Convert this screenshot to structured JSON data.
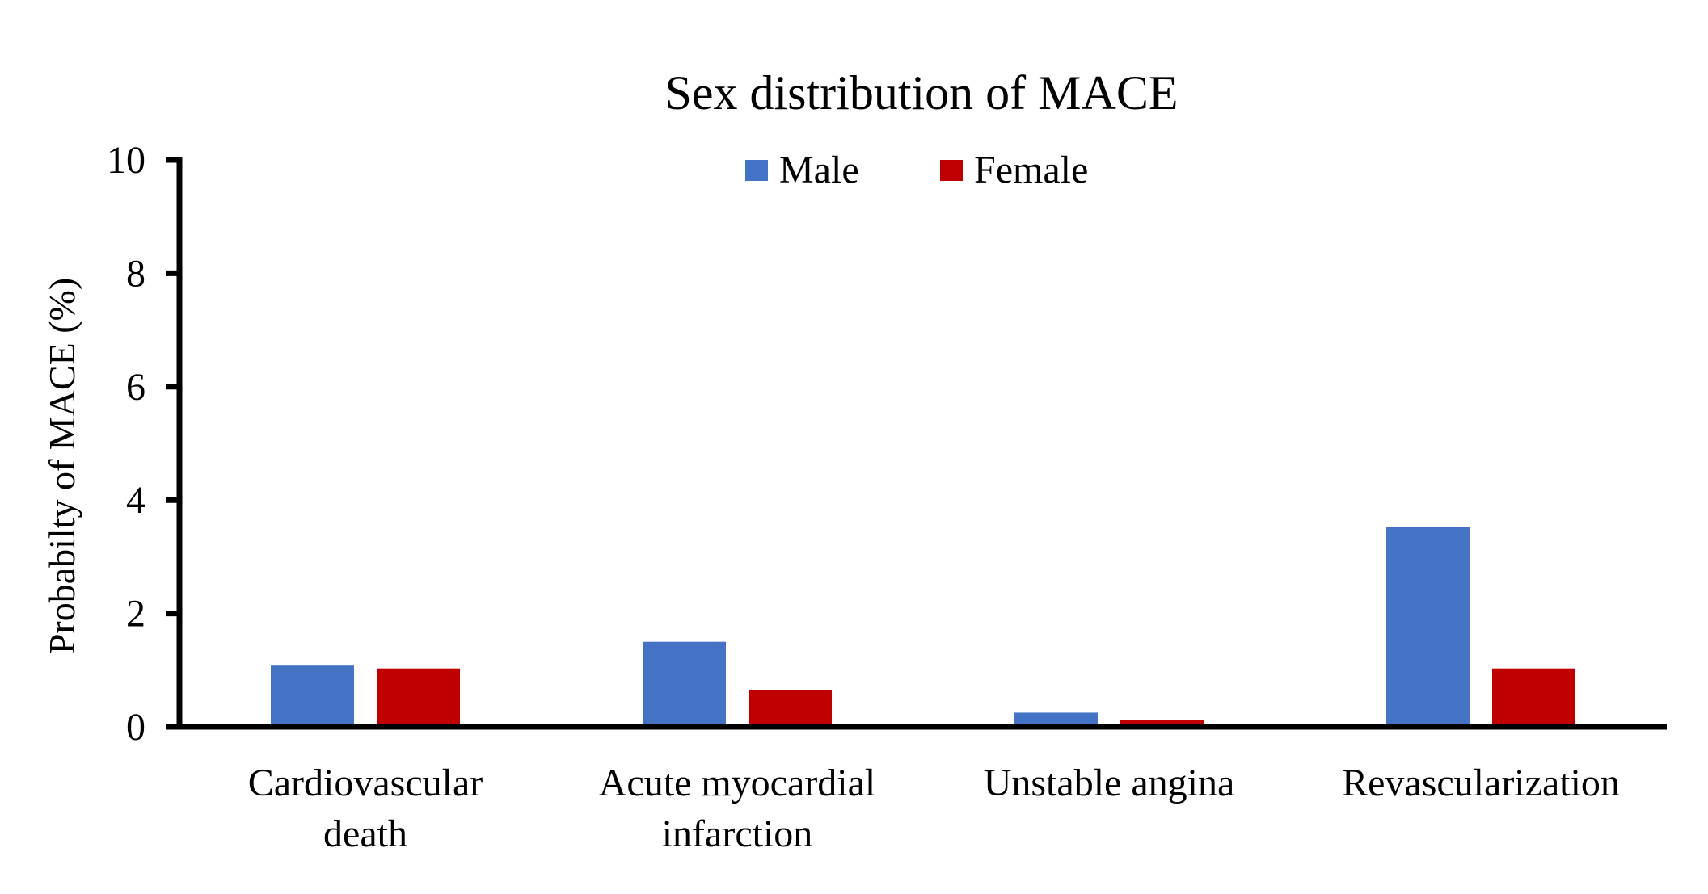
{
  "chart_data": {
    "type": "bar",
    "title": "Sex distribution of MACE",
    "xlabel": "",
    "ylabel": "Probabilty of MACE (%)",
    "ylim": [
      0,
      10
    ],
    "yticks": [
      0,
      2,
      4,
      6,
      8,
      10
    ],
    "grid": false,
    "legend_position": "top-center",
    "categories": [
      [
        "Cardiovascular",
        "death"
      ],
      [
        "Acute myocardial",
        "infarction"
      ],
      [
        "Unstable angina"
      ],
      [
        "Revascularization"
      ]
    ],
    "series": [
      {
        "name": "Male",
        "color": "#4472C4",
        "values": [
          1.08,
          1.5,
          0.25,
          3.52
        ]
      },
      {
        "name": "Female",
        "color": "#C00000",
        "values": [
          1.03,
          0.65,
          0.12,
          1.03
        ]
      }
    ]
  }
}
